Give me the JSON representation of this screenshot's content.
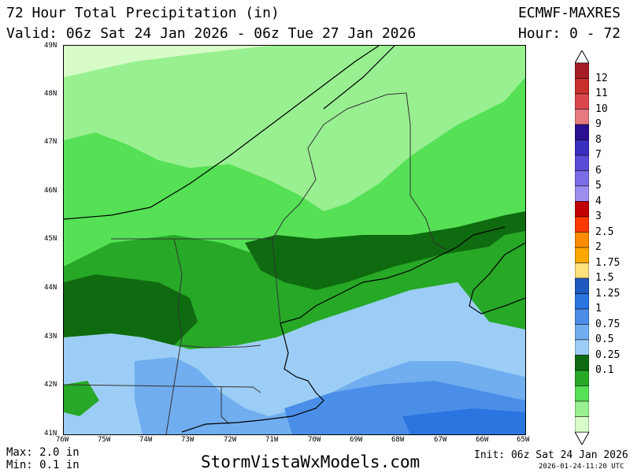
{
  "header": {
    "title": "72 Hour Total Precipitation (in)",
    "valid": "Valid: 06z Sat 24 Jan 2026 - 06z Tue 27 Jan 2026",
    "model": "ECMWF-MAXRES",
    "hour": "Hour: 0 - 72"
  },
  "map": {
    "region": "New England",
    "lat_labels": [
      "49N",
      "48N",
      "47N",
      "46N",
      "45N",
      "44N",
      "43N",
      "42N",
      "41N"
    ],
    "lon_labels": [
      "76W",
      "75W",
      "74W",
      "73W",
      "72W",
      "71W",
      "70W",
      "69W",
      "68W",
      "67W",
      "66W",
      "65W"
    ]
  },
  "colorbar": {
    "levels": [
      {
        "label": "12",
        "color": "#a51c24"
      },
      {
        "label": "11",
        "color": "#c8302c"
      },
      {
        "label": "10",
        "color": "#d9474a"
      },
      {
        "label": "9",
        "color": "#e67a80"
      },
      {
        "label": "8",
        "color": "#2a0f91"
      },
      {
        "label": "7",
        "color": "#3a2fbf"
      },
      {
        "label": "6",
        "color": "#5a4bd8"
      },
      {
        "label": "5",
        "color": "#7a6de6"
      },
      {
        "label": "4",
        "color": "#9d8ff0"
      },
      {
        "label": "3",
        "color": "#c00000"
      },
      {
        "label": "2.5",
        "color": "#ff3a00"
      },
      {
        "label": "2",
        "color": "#ff8c00"
      },
      {
        "label": "1.75",
        "color": "#ffa800"
      },
      {
        "label": "1.5",
        "color": "#ffe07a"
      },
      {
        "label": "1.25",
        "color": "#1f5bbf"
      },
      {
        "label": "1",
        "color": "#2a75e0"
      },
      {
        "label": "0.75",
        "color": "#4a8ee8"
      },
      {
        "label": "0.5",
        "color": "#70aef0"
      },
      {
        "label": "0.25",
        "color": "#9ccdf6"
      },
      {
        "label": "0.1",
        "color": "#0f6b0f"
      }
    ],
    "low_band_colors": [
      "#27a827",
      "#55e055",
      "#98f090",
      "#d8fcc8"
    ]
  },
  "footer": {
    "max": "Max: 2.0 in",
    "min": "Min: 0.1 in",
    "site": "StormVistaWxModels.com",
    "init": "Init: 06z Sat 24 Jan 2026",
    "stamp": "2026-01-24-11:20 UTC"
  }
}
